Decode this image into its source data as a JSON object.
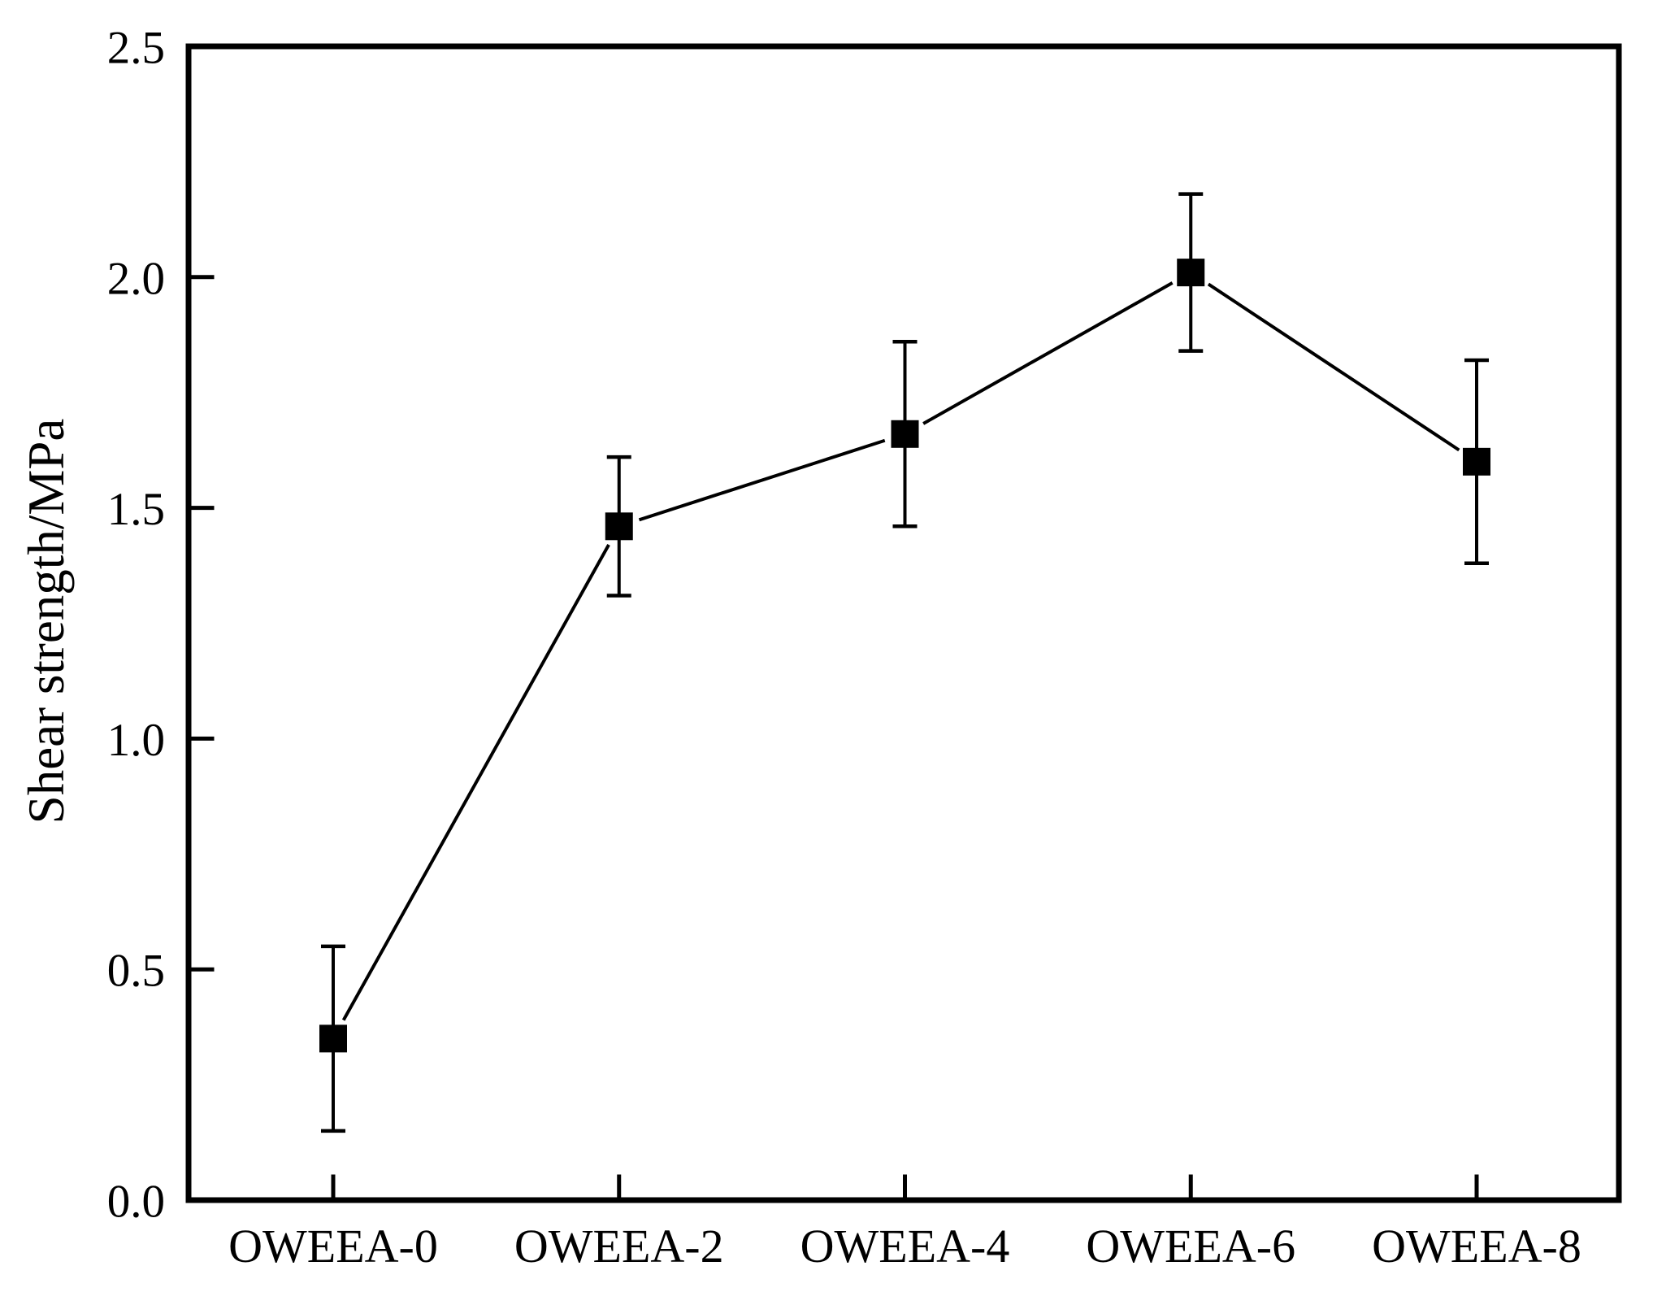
{
  "figure": {
    "background": "#ffffff",
    "axis_color": "#000000"
  },
  "chart_data": {
    "type": "line",
    "title": "",
    "categories": [
      "OWEEA-0",
      "OWEEA-2",
      "OWEEA-4",
      "OWEEA-6",
      "OWEEA-8"
    ],
    "series": [
      {
        "name": "Shear strength",
        "color": "#000000",
        "marker": "filled-square",
        "values": [
          0.35,
          1.46,
          1.66,
          2.01,
          1.6
        ],
        "error_plus": [
          0.2,
          0.15,
          0.2,
          0.17,
          0.22
        ],
        "error_minus": [
          0.2,
          0.15,
          0.2,
          0.17,
          0.22
        ]
      }
    ],
    "xlabel": "",
    "ylabel": "Shear strength/MPa",
    "ylim": [
      0.0,
      2.5
    ],
    "y_ticks": [
      0.0,
      0.5,
      1.0,
      1.5,
      2.0,
      2.5
    ],
    "y_tick_labels": [
      "0.0",
      "0.5",
      "1.0",
      "1.5",
      "2.0",
      "2.5"
    ],
    "grid": false,
    "legend": "none",
    "frame": "box",
    "tick_direction": "in"
  }
}
